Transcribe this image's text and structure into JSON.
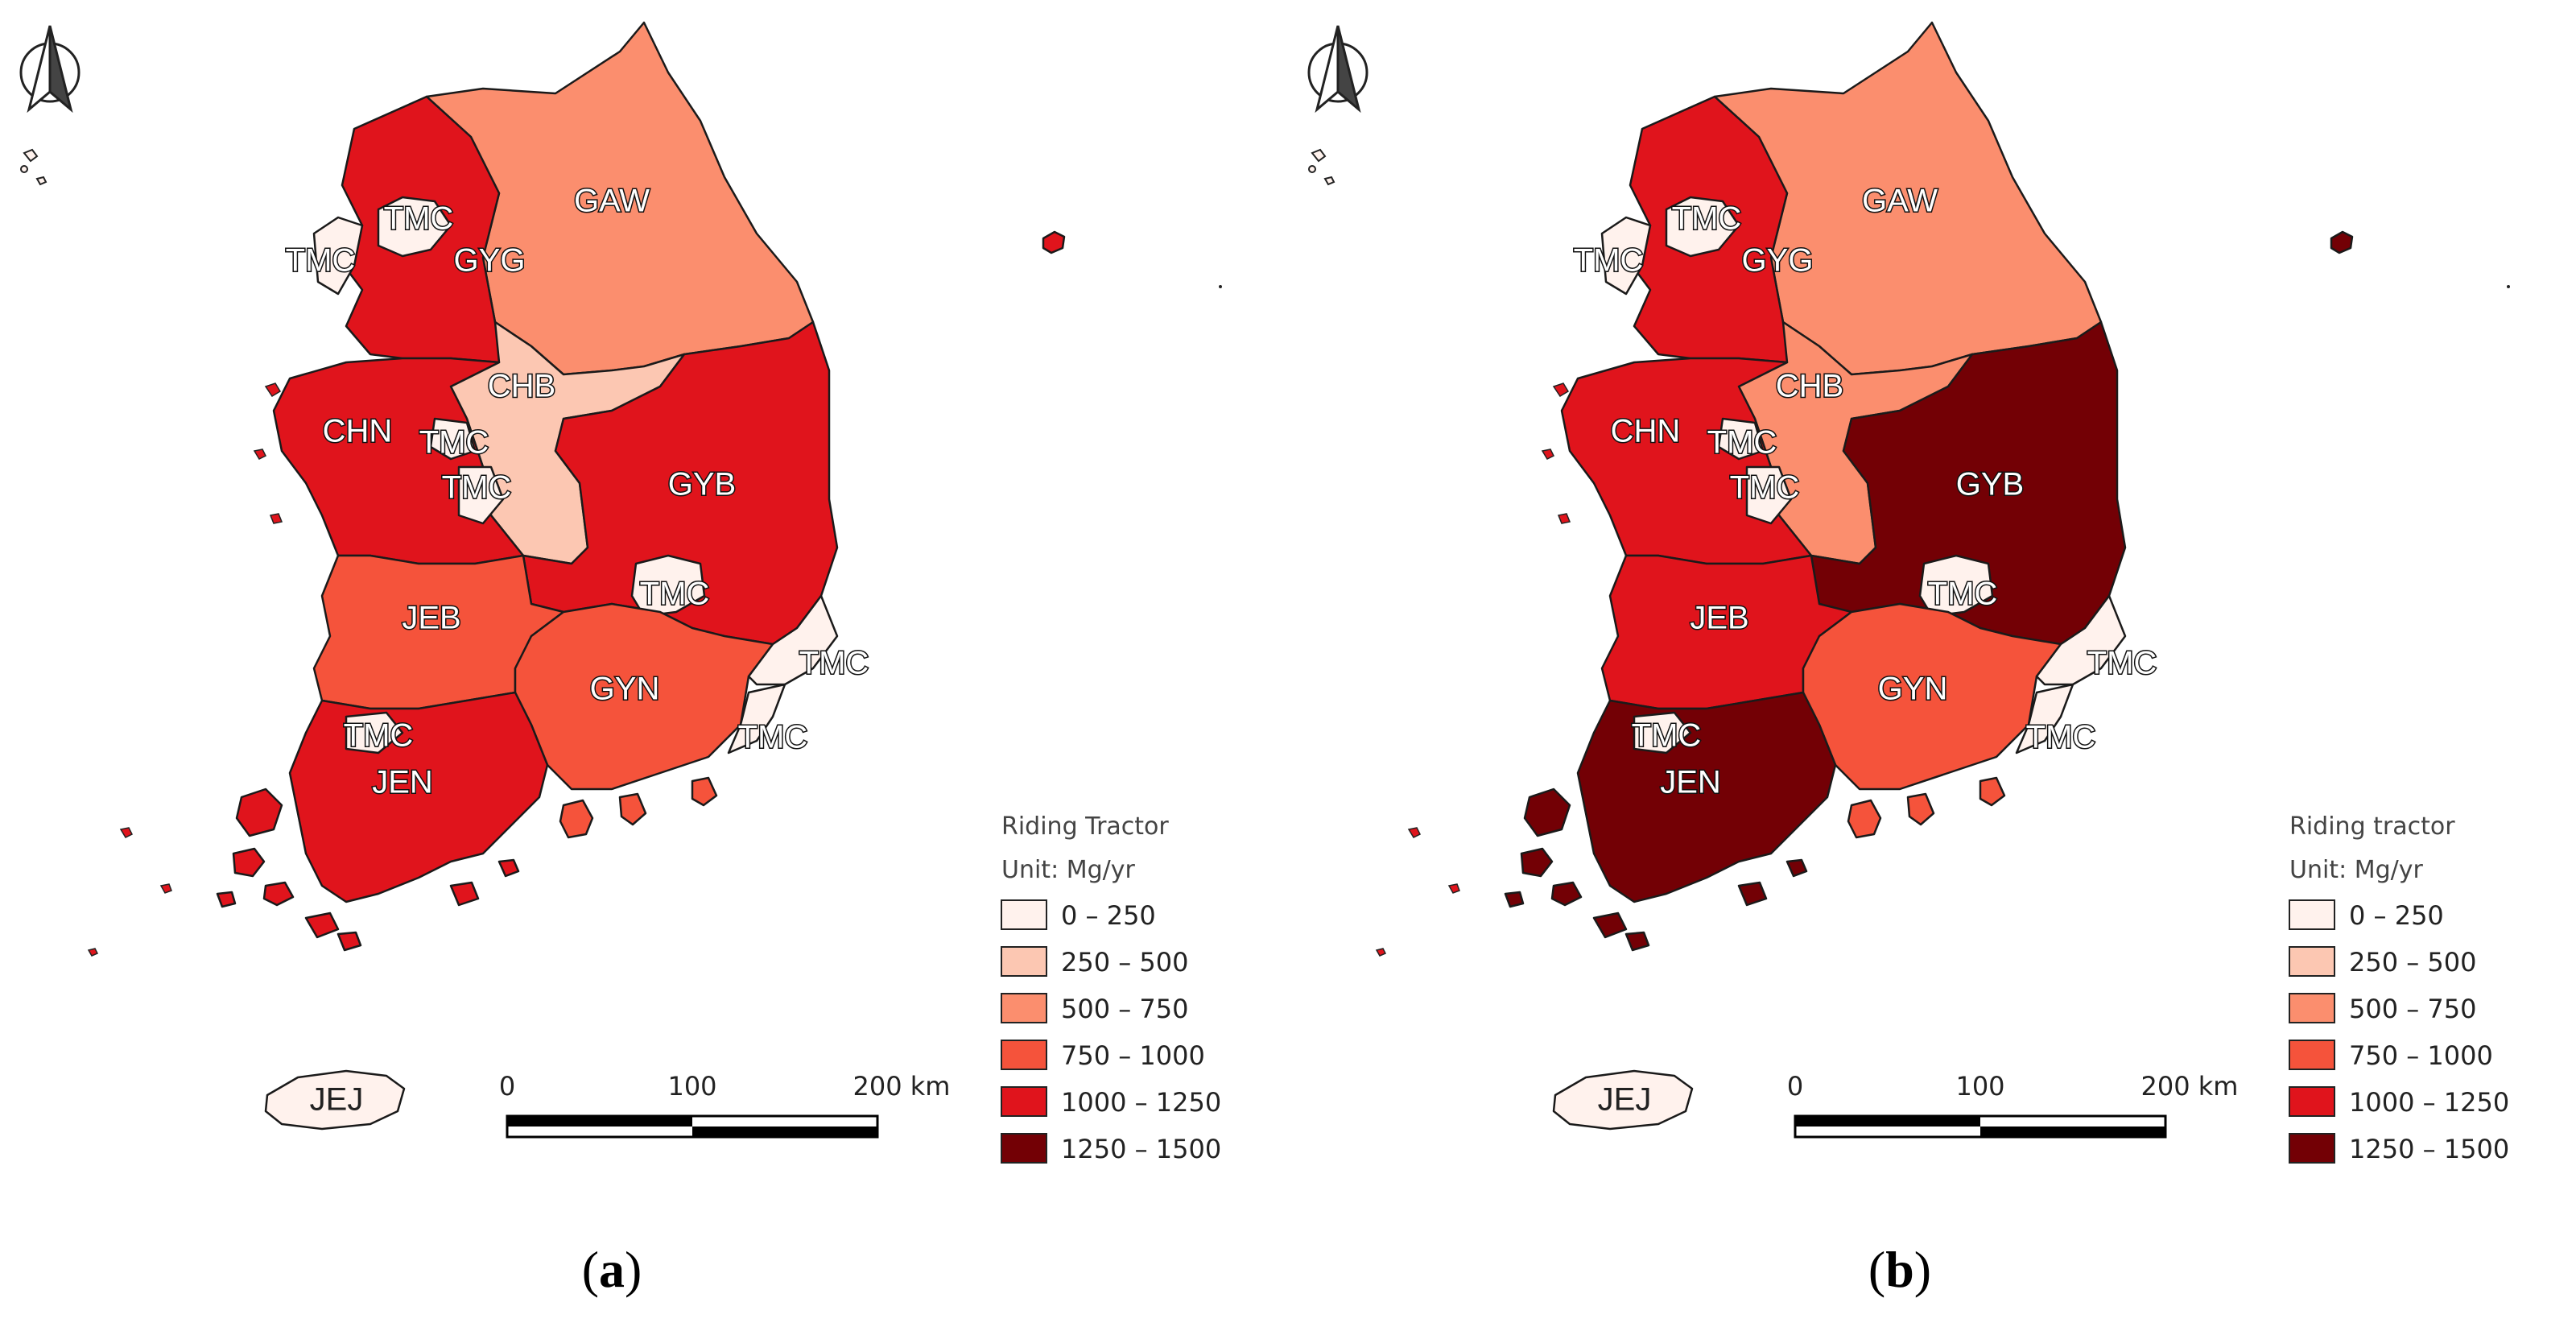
{
  "panels": [
    {
      "id": "a",
      "caption_open": "(",
      "caption_letter": "a",
      "caption_close": ")",
      "legend": {
        "title": "Riding Tractor",
        "unit": "Unit: Mg/yr"
      },
      "regions": [
        {
          "code": "GAW",
          "bin": 2
        },
        {
          "code": "GYG",
          "bin": 4
        },
        {
          "code": "CHB",
          "bin": 1
        },
        {
          "code": "CHN",
          "bin": 4
        },
        {
          "code": "GYB",
          "bin": 4
        },
        {
          "code": "JEB",
          "bin": 3
        },
        {
          "code": "GYN",
          "bin": 3
        },
        {
          "code": "JEN",
          "bin": 4
        },
        {
          "code": "JEJ",
          "bin": 0
        }
      ]
    },
    {
      "id": "b",
      "caption_open": "(",
      "caption_letter": "b",
      "caption_close": ")",
      "legend": {
        "title": "Riding tractor",
        "unit": "Unit: Mg/yr"
      },
      "regions": [
        {
          "code": "GAW",
          "bin": 2
        },
        {
          "code": "GYG",
          "bin": 4
        },
        {
          "code": "CHB",
          "bin": 2
        },
        {
          "code": "CHN",
          "bin": 4
        },
        {
          "code": "GYB",
          "bin": 5
        },
        {
          "code": "JEB",
          "bin": 4
        },
        {
          "code": "GYN",
          "bin": 3
        },
        {
          "code": "JEN",
          "bin": 5
        },
        {
          "code": "JEJ",
          "bin": 0
        }
      ]
    }
  ],
  "metro_label": "TMC",
  "legend_classes": [
    {
      "label": "0 – 250",
      "color": "#fff2ed"
    },
    {
      "label": "250 – 500",
      "color": "#fcc7b2"
    },
    {
      "label": "500 – 750",
      "color": "#fb8e6e"
    },
    {
      "label": "750 – 1000",
      "color": "#f5533b"
    },
    {
      "label": "1000 – 1250",
      "color": "#e0141c"
    },
    {
      "label": "1250 – 1500",
      "color": "#730005"
    }
  ],
  "scale_bar": {
    "ticks": [
      "0",
      "100",
      "200 km"
    ]
  },
  "north_arrow_icon": "north-arrow-icon"
}
